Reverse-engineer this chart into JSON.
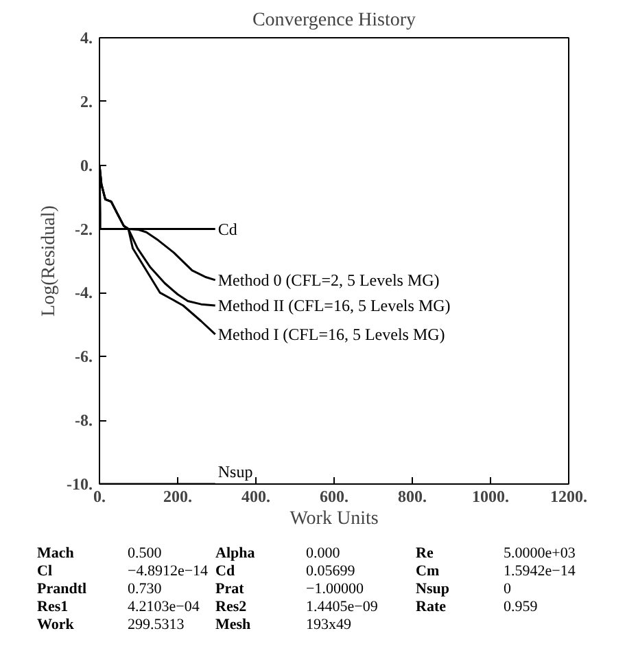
{
  "chart_data": {
    "type": "line",
    "title": "Convergence History",
    "xlabel": "Work Units",
    "ylabel": "Log(Residual)",
    "xlim": [
      0,
      1200
    ],
    "ylim": [
      -10,
      4
    ],
    "xticks": [
      {
        "value": 0,
        "label": "0."
      },
      {
        "value": 200,
        "label": "200."
      },
      {
        "value": 400,
        "label": "400."
      },
      {
        "value": 600,
        "label": "600."
      },
      {
        "value": 800,
        "label": "800."
      },
      {
        "value": 1000,
        "label": "1000."
      },
      {
        "value": 1200,
        "label": "1200."
      }
    ],
    "yticks": [
      {
        "value": 4,
        "label": "4."
      },
      {
        "value": 2,
        "label": "2."
      },
      {
        "value": 0,
        "label": "0."
      },
      {
        "value": -2,
        "label": "-2."
      },
      {
        "value": -4,
        "label": "-4."
      },
      {
        "value": -6,
        "label": "-6."
      },
      {
        "value": -8,
        "label": "-8."
      },
      {
        "value": -10,
        "label": "-10."
      }
    ],
    "grid": false,
    "marker": "none",
    "line_style": "solid",
    "series": [
      {
        "name": "Cd",
        "color": "#000000",
        "x": [
          0,
          2,
          2,
          296
        ],
        "values": [
          0,
          -1.5,
          -2.0,
          -2.0
        ]
      },
      {
        "name": "Method 0 (CFL=2, 5 Levels MG)",
        "color": "#000000",
        "x": [
          0,
          5,
          15,
          30,
          45,
          62,
          74,
          100,
          120,
          150,
          190,
          237,
          270,
          296
        ],
        "values": [
          0,
          -0.6,
          -1.07,
          -1.14,
          -1.5,
          -1.9,
          -2.0,
          -2.02,
          -2.1,
          -2.35,
          -2.74,
          -3.3,
          -3.5,
          -3.6
        ]
      },
      {
        "name": "Method II (CFL=16, 5 Levels MG)",
        "color": "#000000",
        "x": [
          0,
          5,
          15,
          30,
          45,
          62,
          74,
          97,
          130,
          167,
          200,
          226,
          260,
          296
        ],
        "values": [
          0,
          -0.6,
          -1.07,
          -1.14,
          -1.5,
          -1.9,
          -2.0,
          -2.6,
          -3.2,
          -3.7,
          -4.05,
          -4.26,
          -4.36,
          -4.4
        ]
      },
      {
        "name": "Method I (CFL=16, 5 Levels MG)",
        "color": "#000000",
        "x": [
          0,
          5,
          15,
          30,
          45,
          62,
          74,
          85,
          120,
          155,
          185,
          214,
          260,
          296
        ],
        "values": [
          0,
          -0.6,
          -1.07,
          -1.14,
          -1.5,
          -1.9,
          -2.0,
          -2.6,
          -3.3,
          -4.0,
          -4.2,
          -4.4,
          -4.89,
          -5.3
        ]
      },
      {
        "name": "Nsup",
        "color": "#000000",
        "x": [
          0,
          296
        ],
        "values": [
          -10,
          -10
        ]
      }
    ],
    "annotations": [
      "Mach",
      "0.500",
      "Alpha",
      "0.000",
      "Re",
      "5.0000e+03",
      "Cl",
      "−4.8912e−14",
      "Cd",
      "0.05699",
      "Cm",
      "1.5942e−14",
      "Prandtl",
      "0.730",
      "Prat",
      "−1.00000",
      "Nsup",
      "0",
      "Res1",
      "4.2103e−04",
      "Res2",
      "1.4405e−09",
      "Rate",
      "0.959",
      "Work",
      "299.5313",
      "Mesh",
      "193x49"
    ]
  }
}
